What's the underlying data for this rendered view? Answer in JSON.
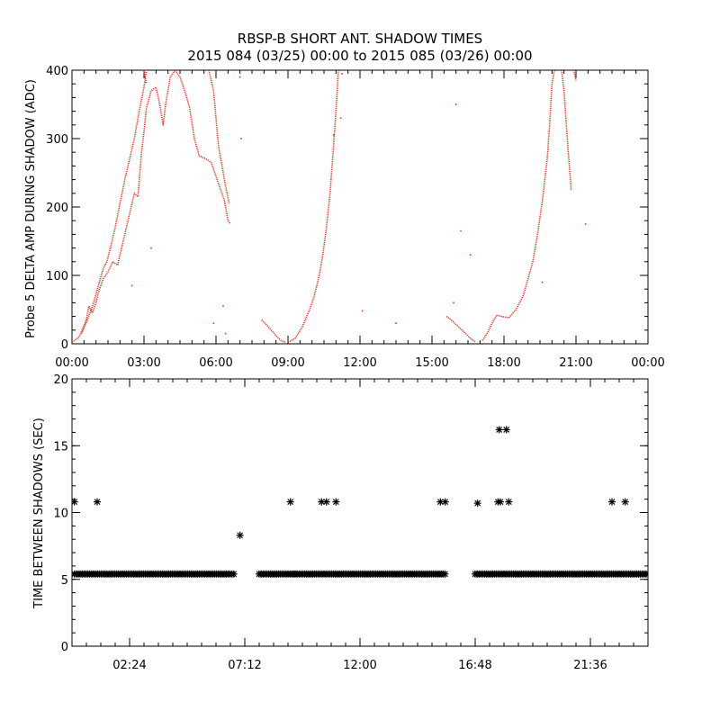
{
  "title": {
    "line1": "RBSP-B SHORT ANT. SHADOW TIMES",
    "line2": "2015 084 (03/25) 00:00 to 2015 085 (03/26) 00:00"
  },
  "colors": {
    "top_series": "#e8321e",
    "bottom_series": "#000000",
    "axes": "#000000"
  },
  "chart_data": [
    {
      "type": "scatter",
      "name": "top-panel",
      "ylabel": "Probe 5 DELTA AMP DURING SHADOW (ADC)",
      "xlabel": "",
      "xlim": [
        0,
        24
      ],
      "ylim": [
        0,
        400
      ],
      "x_ticks": [
        {
          "value": 0,
          "label": "00:00"
        },
        {
          "value": 3,
          "label": "03:00"
        },
        {
          "value": 6,
          "label": "06:00"
        },
        {
          "value": 9,
          "label": "09:00"
        },
        {
          "value": 12,
          "label": "12:00"
        },
        {
          "value": 15,
          "label": "15:00"
        },
        {
          "value": 18,
          "label": "18:00"
        },
        {
          "value": 21,
          "label": "21:00"
        },
        {
          "value": 24,
          "label": "00:00"
        }
      ],
      "y_ticks": [
        {
          "value": 0,
          "label": "0"
        },
        {
          "value": 100,
          "label": "100"
        },
        {
          "value": 200,
          "label": "200"
        },
        {
          "value": 300,
          "label": "300"
        },
        {
          "value": 400,
          "label": "400"
        }
      ],
      "series": [
        {
          "color": "#e8321e",
          "segments": [
            [
              [
                0.0,
                2
              ],
              [
                0.3,
                10
              ],
              [
                0.6,
                35
              ],
              [
                0.7,
                55
              ],
              [
                0.85,
                45
              ],
              [
                1.0,
                60
              ],
              [
                1.1,
                75
              ],
              [
                1.3,
                95
              ],
              [
                1.5,
                105
              ],
              [
                1.7,
                120
              ],
              [
                1.9,
                115
              ],
              [
                2.0,
                130
              ],
              [
                2.2,
                160
              ],
              [
                2.4,
                190
              ],
              [
                2.6,
                220
              ],
              [
                2.75,
                215
              ],
              [
                2.9,
                280
              ],
              [
                3.0,
                310
              ],
              [
                3.1,
                345
              ],
              [
                3.3,
                370
              ],
              [
                3.5,
                375
              ],
              [
                3.6,
                360
              ],
              [
                3.8,
                320
              ],
              [
                3.9,
                350
              ],
              [
                4.1,
                390
              ],
              [
                4.3,
                400
              ]
            ],
            [
              [
                4.3,
                400
              ],
              [
                4.5,
                390
              ],
              [
                4.7,
                370
              ],
              [
                4.9,
                345
              ],
              [
                5.1,
                300
              ],
              [
                5.3,
                275
              ],
              [
                5.6,
                270
              ],
              [
                5.8,
                265
              ],
              [
                6.0,
                245
              ],
              [
                6.2,
                225
              ],
              [
                6.35,
                210
              ],
              [
                6.5,
                180
              ],
              [
                6.6,
                175
              ]
            ],
            [
              [
                5.7,
                400
              ],
              [
                5.9,
                370
              ],
              [
                6.0,
                330
              ],
              [
                6.1,
                290
              ],
              [
                6.25,
                260
              ],
              [
                6.4,
                230
              ],
              [
                6.55,
                205
              ]
            ],
            [
              [
                0.4,
                15
              ],
              [
                0.7,
                40
              ],
              [
                0.9,
                60
              ],
              [
                1.1,
                85
              ],
              [
                1.3,
                110
              ],
              [
                1.45,
                120
              ],
              [
                1.6,
                140
              ],
              [
                1.8,
                170
              ],
              [
                2.0,
                205
              ],
              [
                2.2,
                240
              ],
              [
                2.4,
                270
              ],
              [
                2.6,
                300
              ],
              [
                2.8,
                340
              ],
              [
                3.0,
                375
              ],
              [
                3.1,
                400
              ]
            ],
            [
              [
                3.0,
                400
              ],
              [
                3.1,
                380
              ]
            ],
            [
              [
                7.9,
                35
              ],
              [
                8.1,
                28
              ],
              [
                8.3,
                20
              ],
              [
                8.5,
                12
              ],
              [
                8.7,
                5
              ],
              [
                8.9,
                2
              ]
            ],
            [
              [
                9.0,
                2
              ],
              [
                9.3,
                8
              ],
              [
                9.6,
                25
              ],
              [
                9.9,
                50
              ],
              [
                10.1,
                70
              ],
              [
                10.3,
                100
              ],
              [
                10.45,
                130
              ],
              [
                10.6,
                170
              ],
              [
                10.75,
                220
              ],
              [
                10.9,
                290
              ],
              [
                11.0,
                340
              ],
              [
                11.1,
                400
              ]
            ],
            [
              [
                15.6,
                40
              ],
              [
                15.8,
                35
              ],
              [
                16.1,
                25
              ],
              [
                16.4,
                15
              ],
              [
                16.6,
                8
              ],
              [
                16.8,
                3
              ]
            ],
            [
              [
                17.1,
                5
              ],
              [
                17.3,
                15
              ],
              [
                17.5,
                30
              ],
              [
                17.7,
                42
              ],
              [
                17.9,
                40
              ],
              [
                18.2,
                38
              ],
              [
                18.5,
                50
              ],
              [
                18.8,
                70
              ],
              [
                19.0,
                95
              ],
              [
                19.2,
                120
              ],
              [
                19.4,
                160
              ],
              [
                19.6,
                210
              ],
              [
                19.8,
                270
              ],
              [
                19.9,
                320
              ],
              [
                20.0,
                380
              ],
              [
                20.1,
                400
              ]
            ],
            [
              [
                20.4,
                400
              ],
              [
                20.5,
                370
              ],
              [
                20.6,
                320
              ],
              [
                20.7,
                270
              ],
              [
                20.8,
                225
              ]
            ],
            [
              [
                20.9,
                400
              ],
              [
                21.0,
                385
              ]
            ]
          ],
          "scatter": [
            [
              3.3,
              140
            ],
            [
              2.5,
              85
            ],
            [
              5.9,
              30
            ],
            [
              6.3,
              55
            ],
            [
              6.4,
              15
            ],
            [
              10.9,
              305
            ],
            [
              11.2,
              330
            ],
            [
              16.0,
              350
            ],
            [
              16.2,
              165
            ],
            [
              16.6,
              130
            ],
            [
              15.9,
              60
            ],
            [
              21.4,
              175
            ],
            [
              19.6,
              90
            ],
            [
              12.1,
              48
            ],
            [
              13.5,
              30
            ],
            [
              7.0,
              390
            ],
            [
              7.05,
              300
            ],
            [
              11.25,
              395
            ]
          ]
        }
      ]
    },
    {
      "type": "scatter",
      "name": "bottom-panel",
      "ylabel": "TIME BETWEEN SHADOWS (SEC)",
      "xlabel": "",
      "xlim": [
        0,
        24
      ],
      "ylim": [
        0,
        20
      ],
      "x_ticks": [
        {
          "value": 2.4,
          "label": "02:24"
        },
        {
          "value": 7.2,
          "label": "07:12"
        },
        {
          "value": 12.0,
          "label": "12:00"
        },
        {
          "value": 16.8,
          "label": "16:48"
        },
        {
          "value": 21.6,
          "label": "21:36"
        }
      ],
      "y_ticks": [
        {
          "value": 0,
          "label": "0"
        },
        {
          "value": 5,
          "label": "5"
        },
        {
          "value": 10,
          "label": "10"
        },
        {
          "value": 15,
          "label": "15"
        },
        {
          "value": 20,
          "label": "20"
        }
      ],
      "marker": "*",
      "series": [
        {
          "color": "#000000",
          "baseline_value": 5.4,
          "baseline_ranges": [
            [
              0.1,
              6.75
            ],
            [
              7.8,
              9.3
            ],
            [
              9.3,
              15.6
            ],
            [
              16.8,
              24.0
            ]
          ],
          "points": [
            [
              0.1,
              10.8
            ],
            [
              1.05,
              10.8
            ],
            [
              7.0,
              8.3
            ],
            [
              9.1,
              10.8
            ],
            [
              10.4,
              10.8
            ],
            [
              10.6,
              10.8
            ],
            [
              11.0,
              10.8
            ],
            [
              15.35,
              10.8
            ],
            [
              15.55,
              10.8
            ],
            [
              16.9,
              10.7
            ],
            [
              17.75,
              10.8
            ],
            [
              17.85,
              10.8
            ],
            [
              18.2,
              10.8
            ],
            [
              17.8,
              16.2
            ],
            [
              18.1,
              16.2
            ],
            [
              22.5,
              10.8
            ],
            [
              23.05,
              10.8
            ]
          ]
        }
      ]
    }
  ]
}
